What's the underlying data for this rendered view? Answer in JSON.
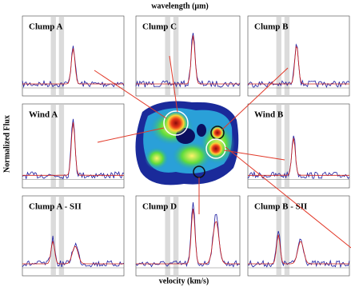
{
  "axes": {
    "top_label": "wavelength (μm)",
    "bottom_label": "velocity (km/s)",
    "left_label": "Normalized Flux"
  },
  "panels": [
    {
      "title": "Clump A"
    },
    {
      "title": "Clump C"
    },
    {
      "title": "Clump B"
    },
    {
      "title": "Wind A"
    },
    {
      "title": "Wind B"
    },
    {
      "title": "Clump A - SII"
    },
    {
      "title": "Clump D"
    },
    {
      "title": "Clump B - SII"
    }
  ]
}
